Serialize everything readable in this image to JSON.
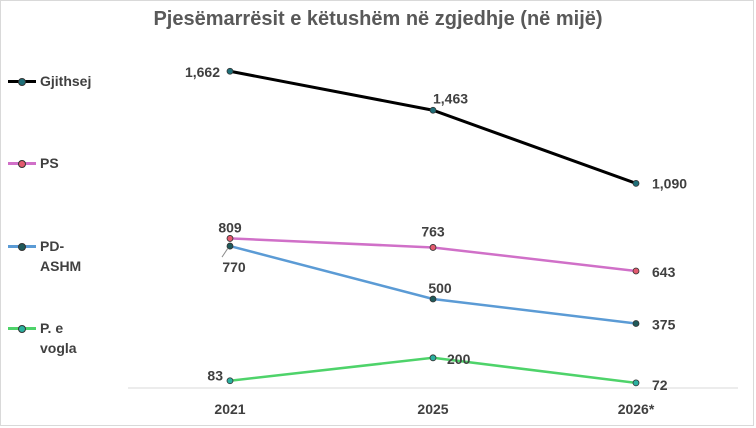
{
  "chart_data": {
    "type": "line",
    "title": "Pjesëmarrësit e këtushëm në zgjedhje (në mijë)",
    "xlabel": "",
    "ylabel": "",
    "categories": [
      "2021",
      "2025",
      "2026*"
    ],
    "legend_position": "left",
    "grid": false,
    "ylim": [
      0,
      1800
    ],
    "series": [
      {
        "name": "Gjithsej",
        "color": "#000000",
        "marker_color": "#1f6f78",
        "values": [
          1662,
          1463,
          1090
        ],
        "labels": [
          "1,662",
          "1,463",
          "1,090"
        ]
      },
      {
        "name": "PS",
        "color": "#d070c8",
        "marker_color": "#e35a6e",
        "values": [
          809,
          763,
          643
        ],
        "labels": [
          "809",
          "763",
          "643"
        ]
      },
      {
        "name": "PD-ASHM",
        "color": "#5b9bd5",
        "marker_color": "#1f5a5a",
        "values": [
          770,
          500,
          375
        ],
        "labels": [
          "770",
          "500",
          "375"
        ]
      },
      {
        "name": "P. e vogla",
        "color": "#4ed36a",
        "marker_color": "#2ab0a0",
        "values": [
          83,
          200,
          72
        ],
        "labels": [
          "83",
          "200",
          "72"
        ]
      }
    ]
  },
  "legend": [
    {
      "lines": [
        "Gjithsej"
      ],
      "color": "#000000",
      "marker_color": "#1f6f78"
    },
    {
      "lines": [
        "PS"
      ],
      "color": "#d070c8",
      "marker_color": "#e35a6e"
    },
    {
      "lines": [
        "PD-",
        "ASHM"
      ],
      "color": "#5b9bd5",
      "marker_color": "#1f5a5a"
    },
    {
      "lines": [
        "P. e",
        "vogla"
      ],
      "color": "#4ed36a",
      "marker_color": "#2ab0a0"
    }
  ]
}
